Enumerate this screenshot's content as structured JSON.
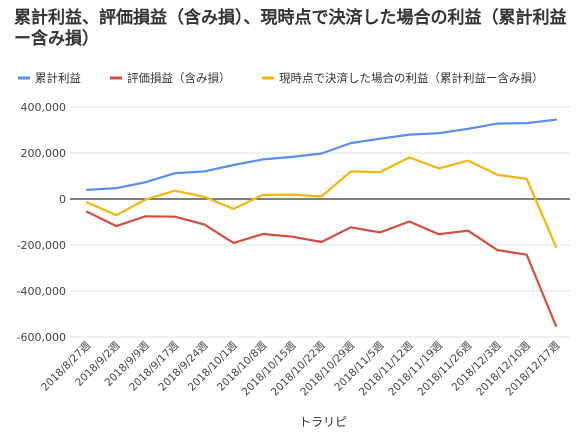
{
  "chart_data": {
    "type": "line",
    "title": "累計利益、評価損益（含み損）、現時点で決済した場合の利益（累計利益ー含み損）",
    "xlabel": "トラリピ",
    "ylabel": "",
    "ylim": [
      -600000,
      400000
    ],
    "yticks": [
      400000,
      200000,
      0,
      -200000,
      -400000,
      -600000
    ],
    "ytick_labels": [
      "400,000",
      "200,000",
      "0",
      "-200,000",
      "-400,000",
      "-600,000"
    ],
    "grid": true,
    "legend_position": "top-left",
    "categories": [
      "2018/8/27週",
      "2018/9/2週",
      "2018/9/9週",
      "2018/9/17週",
      "2018/9/24週",
      "2018/10/1週",
      "2018/10/8週",
      "2018/10/15週",
      "2018/10/22週",
      "2018/10/29週",
      "2018/11/5週",
      "2018/11/12週",
      "2018/11/19週",
      "2018/11/26週",
      "2018/12/3週",
      "2018/12/10週",
      "2018/12/17週"
    ],
    "series": [
      {
        "name": "累計利益",
        "color": "#5b8def",
        "values": [
          40000,
          47000,
          73000,
          112000,
          120000,
          148000,
          172000,
          183000,
          198000,
          243000,
          262000,
          280000,
          286000,
          305000,
          328000,
          330000,
          345000
        ]
      },
      {
        "name": "評価損益（含み損）",
        "color": "#d64c3f",
        "values": [
          -55000,
          -118000,
          -75000,
          -77000,
          -111000,
          -191000,
          -152000,
          -164000,
          -187000,
          -123000,
          -145000,
          -98000,
          -153000,
          -138000,
          -222000,
          -242000,
          -552000
        ]
      },
      {
        "name": "現時点で決済した場合の利益（累計利益ー含み損）",
        "color": "#f5b50f",
        "values": [
          -15000,
          -70000,
          -2000,
          36000,
          9000,
          -43000,
          18000,
          19000,
          11000,
          120000,
          117000,
          181000,
          133000,
          167000,
          105000,
          88000,
          -208000
        ]
      }
    ]
  }
}
